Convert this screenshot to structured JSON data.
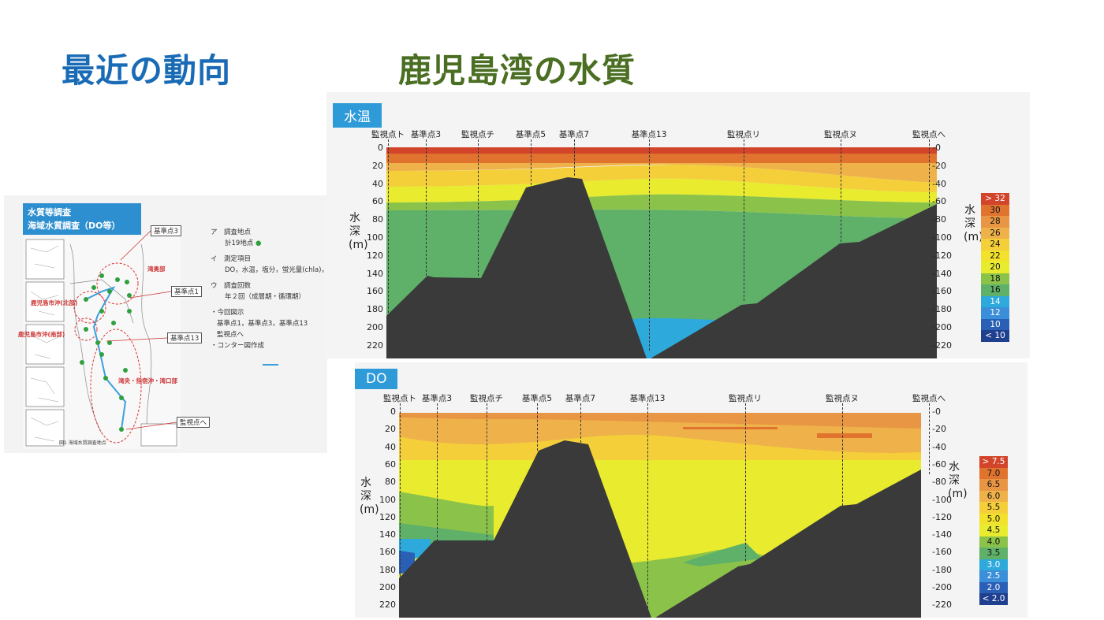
{
  "titles": {
    "left": "最近の動向",
    "right": "鹿児島湾の水質"
  },
  "map": {
    "header_line1": "水質等調査",
    "header_line2": "海域水質調査（DO等）",
    "info": {
      "a_label": "ア　調査地点",
      "a_value": "計19地点",
      "i_label": "イ　測定項目",
      "i_value": "DO，水温，塩分，蛍光量(chla)，",
      "u_label": "ウ　調査回数",
      "u_value": "年２回（成層期・循環期）",
      "note1": "・今回図示",
      "note2": "基準点1，基準点3，基準点13",
      "note3": "監視点へ",
      "note4": "・コンター図作成"
    },
    "box_labels": [
      "基準点3",
      "基準点1",
      "基準点13",
      "監視点へ"
    ],
    "red_labels": [
      "湾奥部",
      "鹿児島市沖(北部)",
      "鹿児島市沖(南部)",
      "湾央・指宿沖・湾口部"
    ],
    "caption": "図1 海域水質調査地点"
  },
  "temp": {
    "tag": "水温",
    "points": [
      "監視点ト",
      "基準点3",
      "監視点チ",
      "基準点5",
      "基準点7",
      "基準点13",
      "監視点リ",
      "監視点ヌ",
      "監視点へ"
    ],
    "depths": [
      "0",
      "20",
      "40",
      "60",
      "80",
      "100",
      "120",
      "140",
      "160",
      "180",
      "200",
      "220"
    ],
    "axis_left": "水深(m)",
    "axis_right": "水深(m)",
    "legend": [
      {
        "label": "> 32",
        "color": "#d2452a"
      },
      {
        "label": "30",
        "color": "#e0742f"
      },
      {
        "label": "28",
        "color": "#e89643"
      },
      {
        "label": "26",
        "color": "#efb24a"
      },
      {
        "label": "24",
        "color": "#f4cf3a"
      },
      {
        "label": "22",
        "color": "#f2e22c"
      },
      {
        "label": "20",
        "color": "#e8eb2e"
      },
      {
        "label": "18",
        "color": "#8bc34a"
      },
      {
        "label": "16",
        "color": "#5fb069"
      },
      {
        "label": "14",
        "color": "#2ea9dc"
      },
      {
        "label": "12",
        "color": "#3b8ed8"
      },
      {
        "label": "10",
        "color": "#2a5fb6"
      },
      {
        "label": "< 10",
        "color": "#1f3f8f"
      }
    ]
  },
  "do": {
    "tag": "DO",
    "points": [
      "監視点ト",
      "基準点3",
      "監視点チ",
      "基準点5",
      "基準点7",
      "基準点13",
      "監視点リ",
      "監視点ヌ",
      "監視点へ"
    ],
    "depths": [
      "0",
      "20",
      "40",
      "60",
      "80",
      "100",
      "120",
      "140",
      "160",
      "180",
      "200",
      "220"
    ],
    "axis_left": "水深(m)",
    "axis_right": "水深(m)",
    "legend": [
      {
        "label": "> 7.5",
        "color": "#d2452a"
      },
      {
        "label": "7.0",
        "color": "#e0742f"
      },
      {
        "label": "6.5",
        "color": "#e89643"
      },
      {
        "label": "6.0",
        "color": "#efb24a"
      },
      {
        "label": "5.5",
        "color": "#f4cf3a"
      },
      {
        "label": "5.0",
        "color": "#f2e22c"
      },
      {
        "label": "4.5",
        "color": "#e8eb2e"
      },
      {
        "label": "4.0",
        "color": "#8bc34a"
      },
      {
        "label": "3.5",
        "color": "#5fb069"
      },
      {
        "label": "3.0",
        "color": "#2ea9dc"
      },
      {
        "label": "2.5",
        "color": "#3b8ed8"
      },
      {
        "label": "2.0",
        "color": "#2a5fb6"
      },
      {
        "label": "< 2.0",
        "color": "#1f3f8f"
      }
    ]
  }
}
